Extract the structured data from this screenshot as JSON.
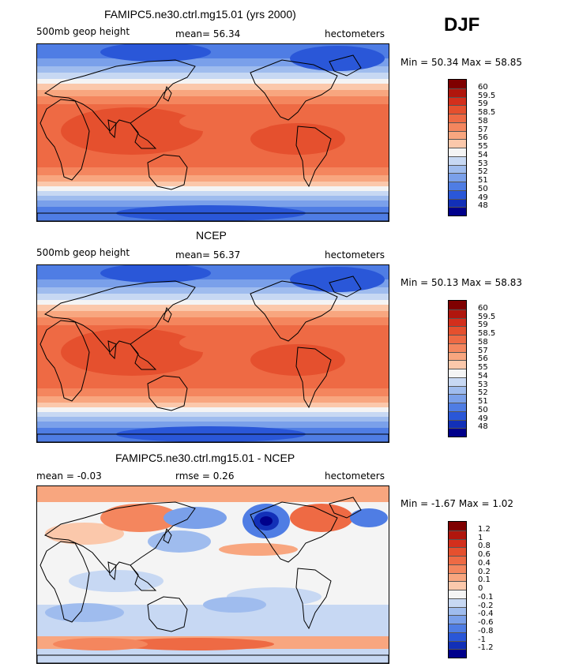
{
  "season": "DJF",
  "panels": [
    {
      "title": "FAMIPC5.ne30.ctrl.mg15.01 (yrs 2000)",
      "left_label": "500mb geop height",
      "stat": "mean=  56.34",
      "units": "hectometers",
      "minmax": "Min =  50.34  Max =  58.85",
      "kind": "field"
    },
    {
      "title": "NCEP",
      "left_label": "500mb geop height",
      "stat": "mean=  56.37",
      "units": "hectometers",
      "minmax": "Min =  50.13  Max =  58.83",
      "kind": "field"
    },
    {
      "title": "FAMIPC5.ne30.ctrl.mg15.01 - NCEP",
      "left_label": "mean =  -0.03",
      "stat": "rmse =   0.26",
      "units": "hectometers",
      "minmax": "Min =  -1.67  Max =   1.02",
      "kind": "diff"
    }
  ],
  "colorbars": {
    "field": {
      "labels": [
        "60",
        "59.5",
        "59",
        "58.5",
        "58",
        "57",
        "56",
        "55",
        "54",
        "53",
        "52",
        "51",
        "50",
        "49",
        "48"
      ],
      "colors": [
        "#7f0000",
        "#b0160d",
        "#d32f1c",
        "#e5502e",
        "#ee6a44",
        "#f4865e",
        "#f8a67f",
        "#fbc8ab",
        "#f4f4f4",
        "#c7d8f3",
        "#9fbcee",
        "#7aa0ea",
        "#4f7de4",
        "#2a57d8",
        "#1230b8",
        "#00008b"
      ]
    },
    "diff": {
      "labels": [
        "1.2",
        "1",
        "0.8",
        "0.6",
        "0.4",
        "0.2",
        "0.1",
        "0",
        "-0.1",
        "-0.2",
        "-0.4",
        "-0.6",
        "-0.8",
        "-1",
        "-1.2"
      ],
      "colors": [
        "#7f0000",
        "#b0160d",
        "#d32f1c",
        "#e5502e",
        "#ee6a44",
        "#f4865e",
        "#f8a67f",
        "#fbc8ab",
        "#f4f4f4",
        "#c7d8f3",
        "#9fbcee",
        "#7aa0ea",
        "#4f7de4",
        "#2a57d8",
        "#1230b8",
        "#00008b"
      ]
    }
  }
}
